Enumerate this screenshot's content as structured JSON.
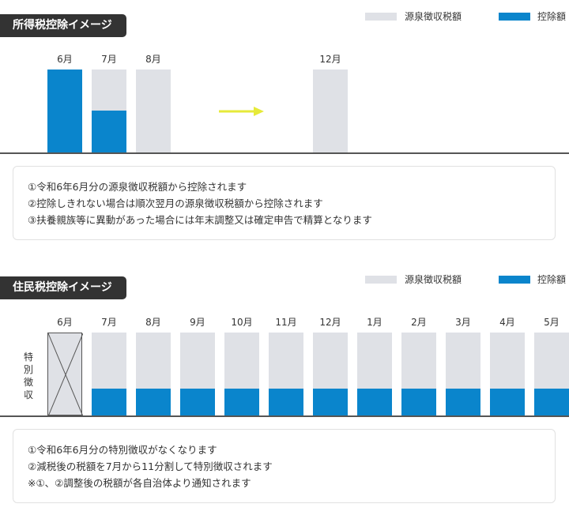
{
  "colors": {
    "withholding": "#dfe1e6",
    "deduction": "#0a85cc",
    "arrow": "#e6ea3a"
  },
  "income_tax": {
    "title": "所得税控除イメージ",
    "legend": {
      "withholding": "源泉徴収税額",
      "deduction": "控除額"
    },
    "months": [
      "6月",
      "7月",
      "8月",
      "12月"
    ],
    "notes": [
      "①令和6年6月分の源泉徴収税額から控除されます",
      "②控除しきれない場合は順次翌月の源泉徴収税額から控除されます",
      "③扶養親族等に異動があった場合には年末調整又は確定申告で精算となります"
    ]
  },
  "resident_tax": {
    "title": "住民税控除イメージ",
    "legend": {
      "withholding": "源泉徴収税額",
      "deduction": "控除額"
    },
    "side_label": [
      "特",
      "別",
      "徴",
      "収"
    ],
    "months": [
      "6月",
      "7月",
      "8月",
      "9月",
      "10月",
      "11月",
      "12月",
      "1月",
      "2月",
      "3月",
      "4月",
      "5月"
    ],
    "notes": [
      "①令和6年6月分の特別徴収がなくなります",
      "②減税後の税額を7月から11分割して特別徴収されます",
      "※①、②調整後の税額が各自治体より通知されます"
    ]
  },
  "chart_data": [
    {
      "type": "bar",
      "title": "所得税控除イメージ",
      "categories": [
        "6月",
        "7月",
        "8月",
        "12月"
      ],
      "series": [
        {
          "name": "源泉徴収税額",
          "values": [
            1,
            1,
            1,
            1
          ]
        },
        {
          "name": "控除額",
          "values": [
            1,
            0.5,
            0,
            0
          ]
        }
      ]
    },
    {
      "type": "bar",
      "title": "住民税控除イメージ",
      "categories": [
        "6月",
        "7月",
        "8月",
        "9月",
        "10月",
        "11月",
        "12月",
        "1月",
        "2月",
        "3月",
        "4月",
        "5月"
      ],
      "series": [
        {
          "name": "源泉徴収税額",
          "values": [
            0,
            1,
            1,
            1,
            1,
            1,
            1,
            1,
            1,
            1,
            1,
            1
          ]
        },
        {
          "name": "控除額",
          "values": [
            0,
            0.32,
            0.32,
            0.32,
            0.32,
            0.32,
            0.32,
            0.32,
            0.32,
            0.32,
            0.32,
            0.32
          ]
        }
      ]
    }
  ]
}
